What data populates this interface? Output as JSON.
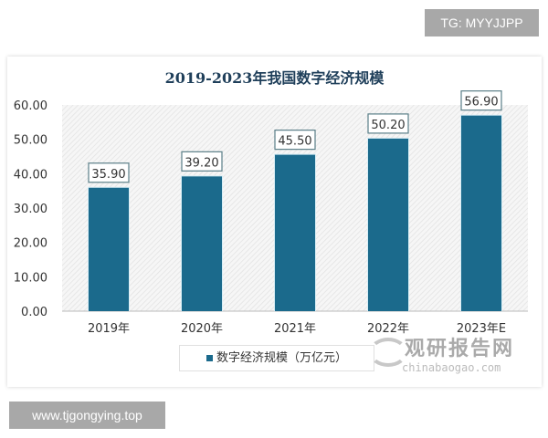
{
  "overlays": {
    "tg": "TG: MYYJJPP",
    "url": "www.tjgongying.top"
  },
  "watermark": {
    "cn": "观研报告网",
    "en": "chinabaogao.com"
  },
  "chart_data": {
    "type": "bar",
    "title": "2019-2023年我国数字经济规模",
    "categories": [
      "2019年",
      "2020年",
      "2021年",
      "2022年",
      "2023年E"
    ],
    "series": [
      {
        "name": "数字经济规模（万亿元）",
        "values": [
          35.9,
          39.2,
          45.5,
          50.2,
          56.9
        ],
        "color": "#1b6a8c"
      }
    ],
    "data_labels": [
      "35.90",
      "39.20",
      "45.50",
      "50.20",
      "56.90"
    ],
    "yticks": [
      "0.00",
      "10.00",
      "20.00",
      "30.00",
      "40.00",
      "50.00",
      "60.00"
    ],
    "ylim": [
      0,
      60
    ],
    "grid": false,
    "legend": "bottom",
    "xlabel": "",
    "ylabel": ""
  }
}
